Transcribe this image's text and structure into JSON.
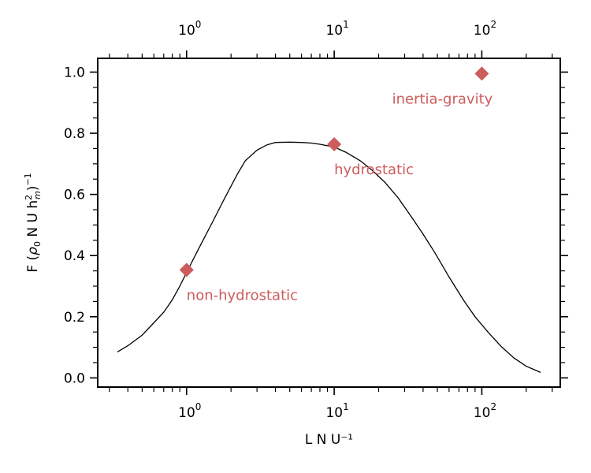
{
  "chart_data": {
    "type": "line",
    "xscale": "log",
    "xlim": [
      0.25,
      340
    ],
    "ylim": [
      -0.03,
      1.045
    ],
    "xlabel": "L N U⁻¹",
    "ylabel_parts": {
      "prefix": "F (",
      "rho": "ρ",
      "rho_sub": "0",
      "middle": " N U h",
      "h_sup": "2",
      "h_sub": "m",
      "close": ")",
      "exp": "−1"
    },
    "x_tick_labels": [
      {
        "value": 1,
        "base": "10",
        "exp": "0"
      },
      {
        "value": 10,
        "base": "10",
        "exp": "1"
      },
      {
        "value": 100,
        "base": "10",
        "exp": "2"
      }
    ],
    "y_ticks": [
      0.0,
      0.2,
      0.4,
      0.6,
      0.8,
      1.0
    ],
    "y_tick_labels": [
      "0.0",
      "0.2",
      "0.4",
      "0.6",
      "0.8",
      "1.0"
    ],
    "top_axis_mirrors_bottom": true,
    "line_color": "#000000",
    "marker_color": "#cd5c5c",
    "series": [
      {
        "x": [
          0.34,
          0.4,
          0.5,
          0.6,
          0.7,
          0.8,
          0.9,
          1.0,
          1.2,
          1.5,
          1.8,
          2.2,
          2.5,
          3.0,
          3.5,
          4.0,
          5.0,
          6.0,
          7.0,
          8.0,
          10,
          12,
          15,
          18,
          22,
          27,
          33,
          40,
          48,
          60,
          75,
          90,
          110,
          135,
          165,
          200,
          250
        ],
        "y": [
          0.085,
          0.105,
          0.14,
          0.18,
          0.215,
          0.255,
          0.3,
          0.345,
          0.42,
          0.51,
          0.585,
          0.665,
          0.71,
          0.745,
          0.762,
          0.77,
          0.771,
          0.77,
          0.768,
          0.764,
          0.755,
          0.738,
          0.71,
          0.68,
          0.64,
          0.59,
          0.53,
          0.47,
          0.41,
          0.33,
          0.255,
          0.2,
          0.15,
          0.103,
          0.065,
          0.038,
          0.018
        ]
      }
    ],
    "markers": [
      {
        "x": 1,
        "y": 0.353,
        "label": "non-hydrostatic"
      },
      {
        "x": 10,
        "y": 0.764,
        "label": "hydrostatic"
      },
      {
        "x": 100,
        "y": 0.995,
        "label": "inertia-gravity"
      }
    ]
  }
}
